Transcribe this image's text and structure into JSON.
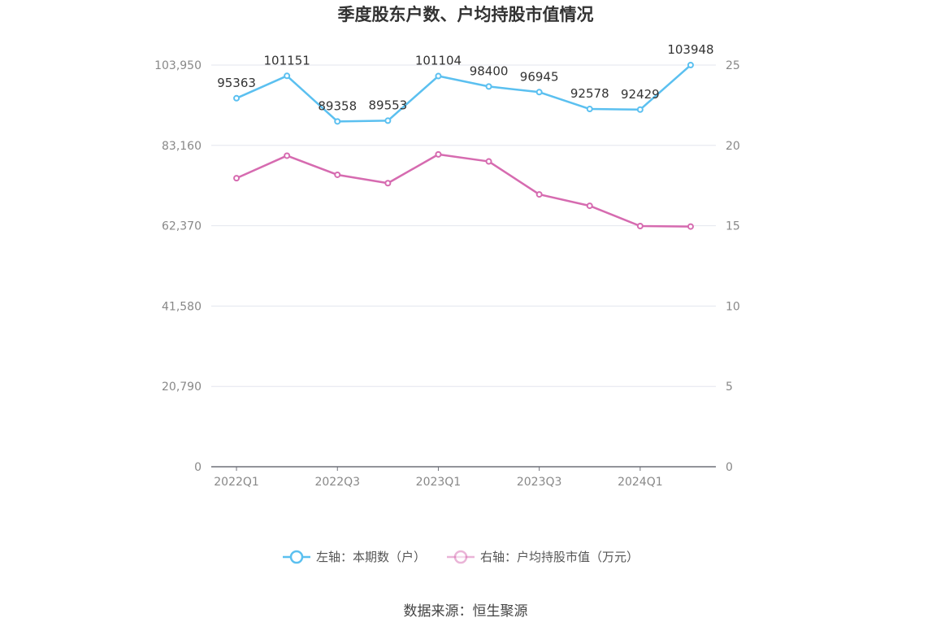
{
  "chart_data": {
    "type": "line",
    "title": "季度股东户数、户均持股市值情况",
    "categories": [
      "2022Q1",
      "2022Q2",
      "2022Q3",
      "2022Q4",
      "2023Q1",
      "2023Q2",
      "2023Q3",
      "2023Q4",
      "2024Q1",
      "2024Q2"
    ],
    "x_tick_labels": [
      "2022Q1",
      "2022Q3",
      "2023Q1",
      "2023Q3",
      "2024Q1"
    ],
    "y_left": {
      "ticks": [
        "0",
        "20,790",
        "41,580",
        "62,370",
        "83,160",
        "103,950"
      ],
      "range": [
        0,
        103950
      ]
    },
    "y_right": {
      "ticks": [
        "0",
        "5",
        "10",
        "15",
        "20",
        "25"
      ],
      "range": [
        0,
        25
      ]
    },
    "grid": true,
    "legend_position": "bottom",
    "series": [
      {
        "name": "左轴：本期数（户）",
        "axis": "left",
        "color": "#5bc0f0",
        "values": [
          95363,
          101151,
          89358,
          89553,
          101104,
          98400,
          96945,
          92578,
          92429,
          103948
        ],
        "labels": [
          "95363",
          "101151",
          "89358",
          "89553",
          "101104",
          "98400",
          "96945",
          "92578",
          "92429",
          "103948"
        ]
      },
      {
        "name": "右轴：户均持股市值（万元）",
        "axis": "right",
        "color": "#d66bb0",
        "values": [
          17.96,
          19.36,
          18.17,
          17.65,
          19.44,
          19.0,
          16.95,
          16.24,
          14.98,
          14.95
        ]
      }
    ]
  },
  "source": "数据来源：恒生聚源"
}
